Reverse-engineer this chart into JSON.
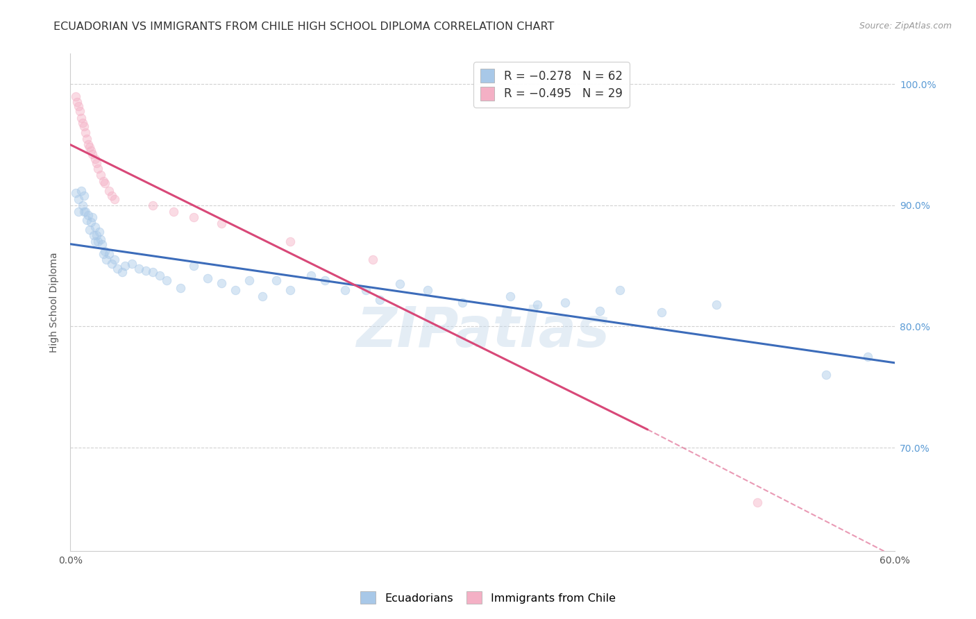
{
  "title": "ECUADORIAN VS IMMIGRANTS FROM CHILE HIGH SCHOOL DIPLOMA CORRELATION CHART",
  "source": "Source: ZipAtlas.com",
  "ylabel": "High School Diploma",
  "xlim": [
    0.0,
    0.6
  ],
  "ylim": [
    0.615,
    1.025
  ],
  "xticks": [
    0.0,
    0.1,
    0.2,
    0.3,
    0.4,
    0.5,
    0.6
  ],
  "xtick_labels": [
    "0.0%",
    "",
    "",
    "",
    "",
    "",
    "60.0%"
  ],
  "yticks": [
    0.7,
    0.8,
    0.9,
    1.0
  ],
  "ytick_labels_right": [
    "70.0%",
    "80.0%",
    "90.0%",
    "100.0%"
  ],
  "legend_entries": [
    {
      "label": "R = −0.278   N = 62",
      "color": "#a8c8e8"
    },
    {
      "label": "R = −0.495   N = 29",
      "color": "#f4b8c8"
    }
  ],
  "ecuadorians_x": [
    0.004,
    0.006,
    0.006,
    0.008,
    0.009,
    0.01,
    0.01,
    0.011,
    0.012,
    0.013,
    0.014,
    0.015,
    0.016,
    0.017,
    0.018,
    0.018,
    0.019,
    0.02,
    0.021,
    0.022,
    0.023,
    0.024,
    0.025,
    0.026,
    0.028,
    0.03,
    0.032,
    0.034,
    0.038,
    0.04,
    0.045,
    0.05,
    0.055,
    0.06,
    0.065,
    0.07,
    0.08,
    0.09,
    0.1,
    0.11,
    0.12,
    0.13,
    0.14,
    0.15,
    0.16,
    0.175,
    0.185,
    0.2,
    0.215,
    0.225,
    0.24,
    0.26,
    0.285,
    0.32,
    0.34,
    0.36,
    0.385,
    0.4,
    0.43,
    0.47,
    0.55,
    0.58
  ],
  "ecuadorians_y": [
    0.91,
    0.905,
    0.895,
    0.912,
    0.9,
    0.895,
    0.908,
    0.895,
    0.888,
    0.892,
    0.88,
    0.886,
    0.89,
    0.875,
    0.882,
    0.87,
    0.875,
    0.87,
    0.878,
    0.872,
    0.868,
    0.86,
    0.862,
    0.855,
    0.86,
    0.852,
    0.855,
    0.848,
    0.845,
    0.85,
    0.852,
    0.848,
    0.846,
    0.845,
    0.842,
    0.838,
    0.832,
    0.85,
    0.84,
    0.836,
    0.83,
    0.838,
    0.825,
    0.838,
    0.83,
    0.842,
    0.838,
    0.83,
    0.83,
    0.822,
    0.835,
    0.83,
    0.82,
    0.825,
    0.818,
    0.82,
    0.813,
    0.83,
    0.812,
    0.818,
    0.76,
    0.775
  ],
  "chile_x": [
    0.004,
    0.005,
    0.006,
    0.007,
    0.008,
    0.009,
    0.01,
    0.011,
    0.012,
    0.013,
    0.014,
    0.015,
    0.016,
    0.018,
    0.019,
    0.02,
    0.022,
    0.024,
    0.025,
    0.028,
    0.03,
    0.032,
    0.06,
    0.075,
    0.09,
    0.11,
    0.16,
    0.22,
    0.5
  ],
  "chile_y": [
    0.99,
    0.985,
    0.982,
    0.978,
    0.972,
    0.968,
    0.965,
    0.96,
    0.955,
    0.95,
    0.948,
    0.945,
    0.942,
    0.938,
    0.935,
    0.93,
    0.925,
    0.92,
    0.918,
    0.912,
    0.908,
    0.905,
    0.9,
    0.895,
    0.89,
    0.885,
    0.87,
    0.855,
    0.655
  ],
  "blue_line_x0": 0.0,
  "blue_line_x1": 0.6,
  "blue_line_y0": 0.868,
  "blue_line_y1": 0.77,
  "pink_line_solid_x0": 0.0,
  "pink_line_solid_x1": 0.42,
  "pink_line_solid_y0": 0.95,
  "pink_line_solid_y1": 0.715,
  "pink_line_dash_x0": 0.42,
  "pink_line_dash_x1": 0.6,
  "pink_line_dash_y0": 0.715,
  "pink_line_dash_y1": 0.61,
  "watermark": "ZIPatlas",
  "scatter_size": 80,
  "scatter_alpha": 0.45,
  "blue_color": "#a8c8e8",
  "pink_color": "#f4b0c5",
  "line_blue_color": "#3c6cba",
  "line_pink_color": "#d84878",
  "background_color": "#ffffff",
  "grid_color": "#cccccc",
  "title_fontsize": 11.5,
  "axis_label_fontsize": 10,
  "tick_fontsize": 10,
  "right_tick_color": "#5b9bd5"
}
